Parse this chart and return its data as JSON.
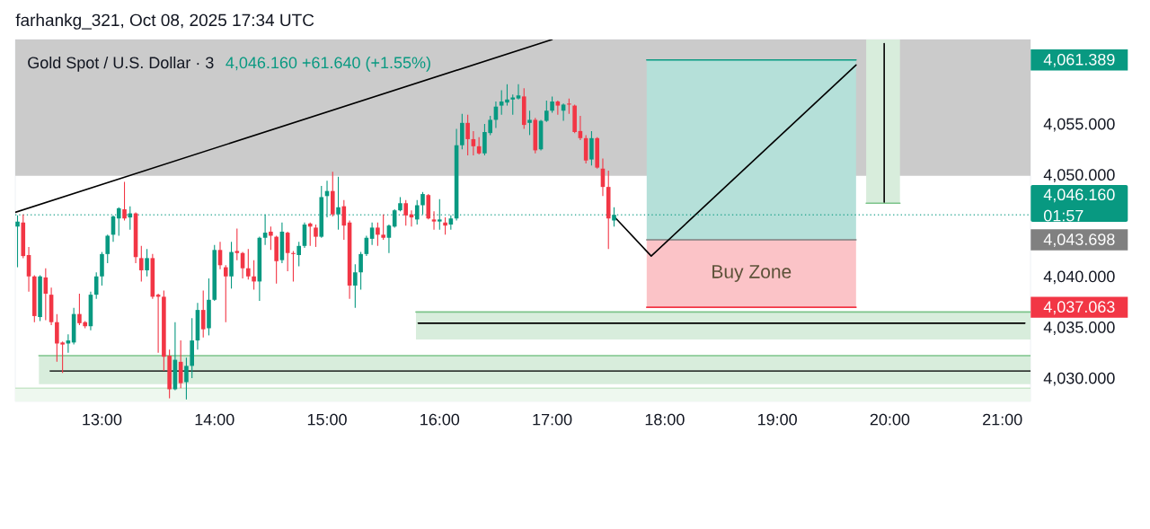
{
  "chart_data": {
    "type": "candlestick",
    "title": "Gold Spot / U.S. Dollar · 3",
    "subtitle": "4,046.160 +61.640 (+1.55%)",
    "annotations": [
      "farhankg_321, Oct 08, 2025 17:34 UTC"
    ],
    "x": [
      12.25,
      12.3,
      12.35,
      12.4,
      12.45,
      12.5,
      12.55,
      12.6,
      12.65,
      12.7,
      12.75,
      12.8,
      12.85,
      12.9,
      12.95,
      13,
      13.05,
      13.1,
      13.15,
      13.2,
      13.25,
      13.3,
      13.35,
      13.4,
      13.45,
      13.5,
      13.55,
      13.6,
      13.65,
      13.7,
      13.75,
      13.8,
      13.85,
      13.9,
      13.95,
      14,
      14.05,
      14.1,
      14.15,
      14.2,
      14.25,
      14.3,
      14.35,
      14.4,
      14.45,
      14.5,
      14.55,
      14.6,
      14.65,
      14.7,
      14.75,
      14.8,
      14.85,
      14.9,
      14.95,
      15,
      15.05,
      15.1,
      15.15,
      15.2,
      15.25,
      15.3,
      15.35,
      15.4,
      15.45,
      15.5,
      15.55,
      15.6,
      15.65,
      15.7,
      15.75,
      15.8,
      15.85,
      15.9,
      15.95,
      16,
      16.05,
      16.1,
      16.15,
      16.2,
      16.25,
      16.3,
      16.35,
      16.4,
      16.45,
      16.5,
      16.55,
      16.6,
      16.65,
      16.7,
      16.75,
      16.8,
      16.85,
      16.9,
      16.95,
      17,
      17.05,
      17.1,
      17.15,
      17.2,
      17.25,
      17.3,
      17.35,
      17.4,
      17.45,
      17.5,
      17.55
    ],
    "ohlc": [
      [
        4045.0,
        4046.1,
        4041.0,
        4045.5
      ],
      [
        4045.4,
        4046.2,
        4041.9,
        4042.1
      ],
      [
        4042.2,
        4043.0,
        4038.6,
        4040.1
      ],
      [
        4040.1,
        4040.2,
        4035.6,
        4036.2
      ],
      [
        4036.1,
        4040.2,
        4035.7,
        4040.1
      ],
      [
        4040.0,
        4040.9,
        4035.8,
        4038.4
      ],
      [
        4038.3,
        4039.0,
        4035.3,
        4035.6
      ],
      [
        4035.6,
        4036.4,
        4031.7,
        4033.5
      ],
      [
        4033.6,
        4033.7,
        4030.6,
        4033.4
      ],
      [
        4033.5,
        4034.4,
        4032.6,
        4033.8
      ],
      [
        4033.6,
        4037.0,
        4033.4,
        4036.4
      ],
      [
        4036.4,
        4038.4,
        4035.3,
        4035.5
      ],
      [
        4035.6,
        4035.7,
        4035.0,
        4035.2
      ],
      [
        4035.2,
        4038.6,
        4034.8,
        4038.3
      ],
      [
        4038.3,
        4040.5,
        4037.9,
        4040.1
      ],
      [
        4040.1,
        4042.5,
        4039.2,
        4042.3
      ],
      [
        4042.3,
        4044.2,
        4041.4,
        4044.1
      ],
      [
        4044.2,
        4046.1,
        4043.5,
        4046.0
      ],
      [
        4045.8,
        4046.9,
        4044.1,
        4046.8
      ],
      [
        4046.7,
        4049.4,
        4045.6,
        4045.8
      ],
      [
        4045.9,
        4047.0,
        4044.7,
        4046.3
      ],
      [
        4046.3,
        4046.4,
        4041.4,
        4042.0
      ],
      [
        4041.9,
        4043.1,
        4039.6,
        4040.7
      ],
      [
        4040.7,
        4042.8,
        4040.1,
        4041.9
      ],
      [
        4041.9,
        4042.3,
        4037.9,
        4038.1
      ],
      [
        4038.3,
        4038.4,
        4032.6,
        4038.1
      ],
      [
        4038.1,
        4038.7,
        4030.8,
        4032.2
      ],
      [
        4032.3,
        4032.9,
        4028.1,
        4029.0
      ],
      [
        4029.0,
        4035.6,
        4028.9,
        4031.9
      ],
      [
        4031.7,
        4033.8,
        4029.1,
        4029.6
      ],
      [
        4029.7,
        4032.1,
        4028.0,
        4031.3
      ],
      [
        4031.3,
        4036.0,
        4030.1,
        4033.8
      ],
      [
        4033.8,
        4037.5,
        4032.9,
        4036.8
      ],
      [
        4036.8,
        4038.7,
        4034.1,
        4034.9
      ],
      [
        4035.0,
        4039.9,
        4034.3,
        4037.8
      ],
      [
        4037.8,
        4043.2,
        4037.7,
        4042.7
      ],
      [
        4042.7,
        4043.5,
        4040.8,
        4041.2
      ],
      [
        4041.0,
        4041.2,
        4035.6,
        4040.1
      ],
      [
        4040.1,
        4043.5,
        4038.9,
        4042.5
      ],
      [
        4042.6,
        4044.8,
        4041.7,
        4042.4
      ],
      [
        4042.4,
        4042.5,
        4039.9,
        4040.9
      ],
      [
        4040.9,
        4042.8,
        4039.8,
        4040.1
      ],
      [
        4040.1,
        4041.7,
        4038.8,
        4039.6
      ],
      [
        4039.6,
        4044.0,
        4037.7,
        4043.9
      ],
      [
        4043.9,
        4046.2,
        4043.2,
        4044.4
      ],
      [
        4044.5,
        4045.0,
        4042.7,
        4044.1
      ],
      [
        4044.0,
        4044.1,
        4039.4,
        4041.6
      ],
      [
        4041.7,
        4045.4,
        4041.4,
        4044.5
      ],
      [
        4044.4,
        4044.5,
        4040.6,
        4042.4
      ],
      [
        4042.4,
        4042.6,
        4039.6,
        4042.3
      ],
      [
        4042.2,
        4043.5,
        4041.1,
        4043.1
      ],
      [
        4043.1,
        4045.4,
        4042.9,
        4045.2
      ],
      [
        4045.3,
        4045.4,
        4043.1,
        4045.0
      ],
      [
        4044.9,
        4045.2,
        4043.0,
        4044.0
      ],
      [
        4044.0,
        4049.0,
        4043.9,
        4047.9
      ],
      [
        4048.0,
        4049.5,
        4045.9,
        4048.5
      ],
      [
        4048.5,
        4050.4,
        4046.0,
        4046.2
      ],
      [
        4046.2,
        4049.9,
        4044.7,
        4046.9
      ],
      [
        4047.0,
        4047.6,
        4043.7,
        4045.1
      ],
      [
        4045.4,
        4045.6,
        4037.9,
        4039.2
      ],
      [
        4039.2,
        4041.3,
        4037.0,
        4040.5
      ],
      [
        4040.5,
        4042.5,
        4038.8,
        4042.3
      ],
      [
        4042.3,
        4044.1,
        4042.1,
        4043.9
      ],
      [
        4043.8,
        4045.4,
        4043.2,
        4044.9
      ],
      [
        4044.9,
        4045.4,
        4043.1,
        4044.2
      ],
      [
        4044.2,
        4046.2,
        4043.7,
        4043.9
      ],
      [
        4043.9,
        4045.2,
        4042.4,
        4045.1
      ],
      [
        4045.0,
        4046.7,
        4044.9,
        4046.6
      ],
      [
        4046.6,
        4047.9,
        4046.5,
        4047.3
      ],
      [
        4047.3,
        4047.6,
        4045.1,
        4046.1
      ],
      [
        4046.2,
        4046.6,
        4045.0,
        4045.9
      ],
      [
        4045.7,
        4047.6,
        4045.2,
        4047.1
      ],
      [
        4047.1,
        4048.4,
        4046.2,
        4048.2
      ],
      [
        4048.1,
        4048.2,
        4045.7,
        4045.8
      ],
      [
        4045.7,
        4046.5,
        4044.7,
        4045.5
      ],
      [
        4045.5,
        4047.7,
        4044.7,
        4045.7
      ],
      [
        4045.4,
        4045.9,
        4044.2,
        4045.1
      ],
      [
        4045.2,
        4046.1,
        4044.7,
        4045.8
      ],
      [
        4045.8,
        4054.6,
        4045.6,
        4053.0
      ],
      [
        4053.0,
        4056.1,
        4052.6,
        4055.2
      ],
      [
        4055.2,
        4056.0,
        4052.0,
        4053.6
      ],
      [
        4053.6,
        4054.4,
        4052.0,
        4052.9
      ],
      [
        4052.9,
        4053.8,
        4052.1,
        4052.2
      ],
      [
        4052.2,
        4055.1,
        4052.0,
        4054.3
      ],
      [
        4054.2,
        4055.9,
        4054.0,
        4055.5
      ],
      [
        4055.5,
        4057.3,
        4054.7,
        4056.8
      ],
      [
        4056.9,
        4058.4,
        4056.0,
        4057.3
      ],
      [
        4057.2,
        4059.0,
        4056.9,
        4057.5
      ],
      [
        4057.5,
        4058.0,
        4056.0,
        4057.7
      ],
      [
        4057.6,
        4059.0,
        4057.5,
        4057.9
      ],
      [
        4057.8,
        4058.6,
        4054.6,
        4055.0
      ],
      [
        4055.2,
        4056.4,
        4054.0,
        4055.5
      ],
      [
        4055.5,
        4055.7,
        4052.2,
        4052.5
      ],
      [
        4052.6,
        4055.5,
        4052.5,
        4055.4
      ],
      [
        4055.4,
        4057.4,
        4055.3,
        4056.4
      ],
      [
        4056.4,
        4057.8,
        4056.2,
        4057.3
      ],
      [
        4057.3,
        4057.4,
        4056.0,
        4056.9
      ],
      [
        4056.4,
        4057.1,
        4055.4,
        4057.0
      ],
      [
        4057.1,
        4057.6,
        4056.1,
        4057.0
      ],
      [
        4056.9,
        4057.0,
        4054.2,
        4054.3
      ],
      [
        4054.4,
        4055.9,
        4053.5,
        4053.7
      ],
      [
        4053.7,
        4054.0,
        4051.2,
        4051.5
      ],
      [
        4051.6,
        4054.4,
        4051.0,
        4053.7
      ],
      [
        4053.7,
        4053.8,
        4050.7,
        4050.8
      ],
      [
        4050.7,
        4051.7,
        4048.0,
        4048.9
      ],
      [
        4048.9,
        4050.5,
        4042.8,
        4045.8
      ],
      [
        4045.6,
        4046.9,
        4045.0,
        4046.16
      ]
    ],
    "colors": [
      "#089981",
      "#f23645",
      "#f23645",
      "#f23645",
      "#089981",
      "#f23645",
      "#f23645",
      "#f23645",
      "#f23645",
      "#089981",
      "#089981",
      "#f23645",
      "#f23645",
      "#089981",
      "#089981",
      "#089981",
      "#089981",
      "#089981",
      "#089981",
      "#f23645",
      "#089981",
      "#f23645",
      "#f23645",
      "#089981",
      "#f23645",
      "#f23645",
      "#f23645",
      "#f23645",
      "#089981",
      "#f23645",
      "#089981",
      "#089981",
      "#089981",
      "#f23645",
      "#089981",
      "#089981",
      "#f23645",
      "#f23645",
      "#089981",
      "#f23645",
      "#f23645",
      "#f23645",
      "#f23645",
      "#089981",
      "#089981",
      "#f23645",
      "#f23645",
      "#089981",
      "#f23645",
      "#f23645",
      "#089981",
      "#089981",
      "#f23645",
      "#f23645",
      "#089981",
      "#089981",
      "#f23645",
      "#089981",
      "#f23645",
      "#f23645",
      "#089981",
      "#089981",
      "#089981",
      "#089981",
      "#f23645",
      "#f23645",
      "#089981",
      "#089981",
      "#089981",
      "#f23645",
      "#f23645",
      "#089981",
      "#089981",
      "#f23645",
      "#f23645",
      "#089981",
      "#f23645",
      "#089981",
      "#089981",
      "#089981",
      "#f23645",
      "#f23645",
      "#f23645",
      "#089981",
      "#089981",
      "#089981",
      "#089981",
      "#089981",
      "#089981",
      "#089981",
      "#f23645",
      "#089981",
      "#f23645",
      "#089981",
      "#089981",
      "#089981",
      "#f23645",
      "#089981",
      "#f23645",
      "#f23645",
      "#f23645",
      "#f23645",
      "#089981",
      "#f23645",
      "#f23645",
      "#f23645",
      "#089981"
    ],
    "series": [
      {
        "type": "line",
        "x": [
          12.23,
          21.25
        ],
        "values": [
          4029.1,
          4029.1
        ],
        "lower": [
          4027.8,
          4027.8
        ],
        "upper": [
          4029.1,
          4029.1
        ],
        "color": "#c8e6c9"
      },
      {
        "type": "line",
        "x": [
          12.44,
          21.25
        ],
        "values": [
          4032.3,
          4032.3
        ],
        "lower": [
          4029.5,
          4029.5
        ],
        "upper": [
          4032.3,
          4032.3
        ],
        "color": "#7cc48a"
      },
      {
        "type": "line",
        "x": [
          15.79,
          21.25
        ],
        "values": [
          4036.6,
          4036.6
        ],
        "lower": [
          4033.9,
          4033.9
        ],
        "upper": [
          4036.6,
          4036.6
        ],
        "color": "#7cc48a"
      },
      {
        "type": "line",
        "x": [
          19.79,
          20.09
        ],
        "values": [
          4047.3,
          4047.3
        ],
        "lower": [
          4047.3,
          4047.3
        ],
        "upper": [
          4063.4,
          4063.4
        ],
        "color": "#7cc48a"
      },
      {
        "type": "line",
        "x": [
          17.84,
          19.7
        ],
        "values": [
          4061.389,
          4061.389
        ],
        "lower": [
          4043.698,
          4043.698
        ],
        "upper": [
          4061.389,
          4061.389
        ],
        "color": "#089981"
      },
      {
        "type": "line",
        "x": [
          17.84,
          19.7
        ],
        "values": [
          4043.698,
          4043.698
        ],
        "color": "#808080"
      },
      {
        "type": "line",
        "name": "Buy Zone",
        "x": [
          17.84,
          19.7
        ],
        "values": [
          4037.063,
          4037.063
        ],
        "lower": [
          4037.063,
          4037.063
        ],
        "upper": [
          4043.698,
          4043.698
        ],
        "color": "#f23645"
      },
      {
        "type": "line",
        "x": [
          12.23,
          17.0
        ],
        "values": [
          4046.4,
          4063.4
        ],
        "color": "#000000"
      },
      {
        "type": "line",
        "x": [
          17.55,
          17.88,
          19.7
        ],
        "values": [
          4046.0,
          4042.1,
          4060.9
        ],
        "color": "#000000"
      },
      {
        "type": "line",
        "x": [
          19.95,
          19.95
        ],
        "values": [
          4047.4,
          4063.0
        ],
        "color": "#000000"
      },
      {
        "type": "line",
        "x": [
          15.81,
          21.2
        ],
        "values": [
          4035.5,
          4035.5
        ],
        "color": "#000000"
      },
      {
        "type": "line",
        "x": [
          12.54,
          21.25
        ],
        "values": [
          4030.8,
          4030.8
        ],
        "color": "#000000"
      }
    ],
    "bands": [
      {
        "axis": "y",
        "from": 4050.0,
        "to": 4063.4,
        "color": "#cbcbcb"
      }
    ],
    "ref_lines": [
      {
        "axis": "y",
        "value": 4046.16,
        "label": "4,046.160 01:57",
        "color": "#089981",
        "line_style": "dotted"
      }
    ],
    "xlim": [
      12.23,
      21.25
    ],
    "ylim": [
      4027.8,
      4063.4
    ],
    "xticks": [
      {
        "value": 13,
        "label": "13:00"
      },
      {
        "value": 14,
        "label": "14:00"
      },
      {
        "value": 15,
        "label": "15:00"
      },
      {
        "value": 16,
        "label": "16:00"
      },
      {
        "value": 17,
        "label": "17:00"
      },
      {
        "value": 18,
        "label": "18:00"
      },
      {
        "value": 19,
        "label": "19:00"
      },
      {
        "value": 20,
        "label": "20:00"
      },
      {
        "value": 21,
        "label": "21:00"
      }
    ],
    "yticks": [
      {
        "value": 4030,
        "label": "4,030.000"
      },
      {
        "value": 4035,
        "label": "4,035.000"
      },
      {
        "value": 4037.063,
        "label": "4,037.063"
      },
      {
        "value": 4040,
        "label": "4,040.000"
      },
      {
        "value": 4043.698,
        "label": "4,043.698"
      },
      {
        "value": 4050,
        "label": "4,050.000"
      },
      {
        "value": 4055,
        "label": "4,055.000"
      },
      {
        "value": 4061.389,
        "label": "4,061.389"
      }
    ]
  }
}
